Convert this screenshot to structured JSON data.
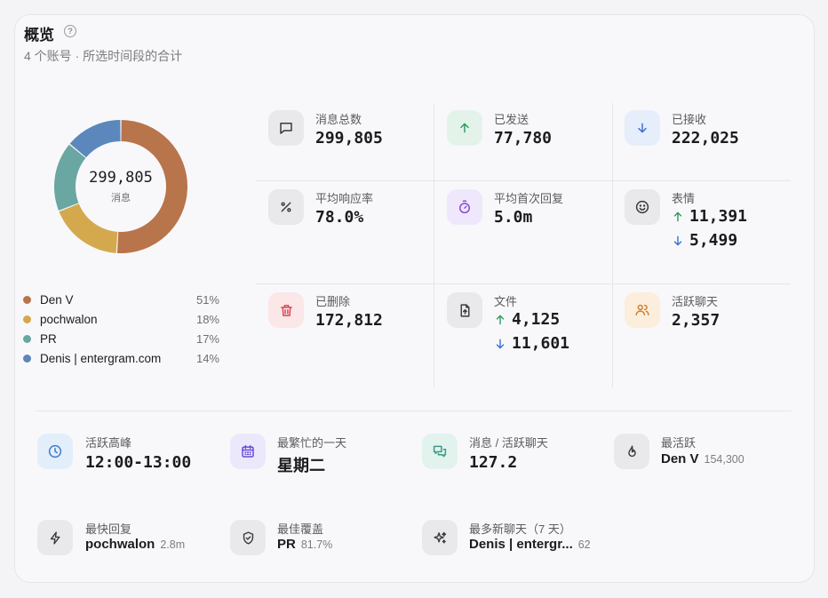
{
  "header": {
    "title": "概览",
    "help_icon": "?",
    "subtitle": "4 个账号 · 所选时间段的合计"
  },
  "donut": {
    "center_value": "299,805",
    "center_label": "消息",
    "segments": [
      {
        "name": "Den V",
        "percent": "51%",
        "fraction": 0.51,
        "color": "#b8744a"
      },
      {
        "name": "pochwalon",
        "percent": "18%",
        "fraction": 0.18,
        "color": "#d4a94e"
      },
      {
        "name": "PR",
        "percent": "17%",
        "fraction": 0.17,
        "color": "#6aa6a2"
      },
      {
        "name": "Denis | entergram.com",
        "percent": "14%",
        "fraction": 0.14,
        "color": "#5b87bc"
      }
    ]
  },
  "stats": {
    "total": {
      "label": "消息总数",
      "value": "299,805"
    },
    "sent": {
      "label": "已发送",
      "value": "77,780"
    },
    "received": {
      "label": "已接收",
      "value": "222,025"
    },
    "response_rate": {
      "label": "平均响应率",
      "value": "78.0%"
    },
    "first_reply": {
      "label": "平均首次回复",
      "value": "5.0m"
    },
    "emoji": {
      "label": "表情",
      "up": "11,391",
      "down": "5,499"
    },
    "deleted": {
      "label": "已删除",
      "value": "172,812"
    },
    "files": {
      "label": "文件",
      "up": "4,125",
      "down": "11,601"
    },
    "active_chats": {
      "label": "活跃聊天",
      "value": "2,357"
    }
  },
  "highlights": {
    "peak": {
      "label": "活跃高峰",
      "value": "12:00-13:00"
    },
    "busiest_day": {
      "label": "最繁忙的一天",
      "value": "星期二"
    },
    "per_chat": {
      "label": "消息 / 活跃聊天",
      "value": "127.2"
    },
    "most_active": {
      "label": "最活跃",
      "name": "Den V",
      "sub": "154,300"
    },
    "fastest": {
      "label": "最快回复",
      "name": "pochwalon",
      "sub": "2.8m"
    },
    "coverage": {
      "label": "最佳覆盖",
      "name": "PR",
      "sub": "81.7%"
    },
    "new_chats": {
      "label": "最多新聊天（7 天）",
      "name": "Denis | entergr...",
      "sub": "62"
    }
  }
}
